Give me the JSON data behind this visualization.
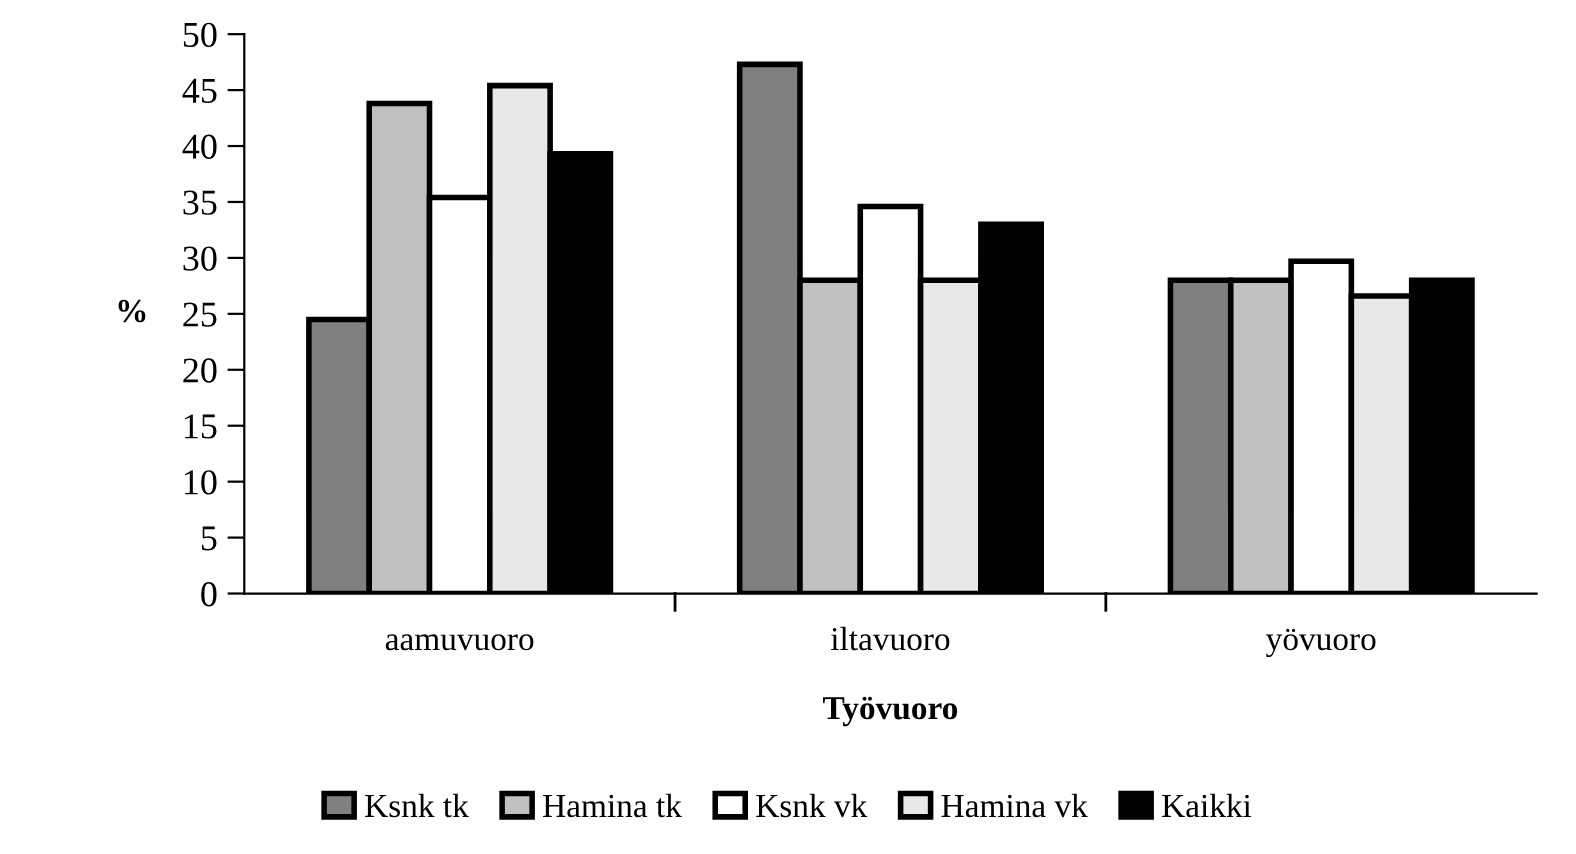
{
  "chart_data": {
    "type": "bar",
    "xlabel": "Työvuoro",
    "ylabel": "%",
    "categories": [
      "aamuvuoro",
      "iltavuoro",
      "yövuoro"
    ],
    "series": [
      {
        "name": "Ksnk tk",
        "color": "#808080",
        "values": [
          24.5,
          47.3,
          28.0
        ]
      },
      {
        "name": "Hamina tk",
        "color": "#c0c0c0",
        "values": [
          43.8,
          28.0,
          28.0
        ]
      },
      {
        "name": "Ksnk vk",
        "color": "#ffffff",
        "values": [
          35.4,
          34.6,
          29.7
        ]
      },
      {
        "name": "Hamina vk",
        "color": "#e8e8e8",
        "values": [
          45.4,
          28.0,
          26.6
        ]
      },
      {
        "name": "Kaikki",
        "color": "#000000",
        "values": [
          39.3,
          33.0,
          28.0
        ]
      }
    ],
    "ylim": [
      0,
      50
    ],
    "yticks": [
      0,
      5,
      10,
      15,
      20,
      25,
      30,
      35,
      40,
      45,
      50
    ],
    "grid": false,
    "legend": "bottom"
  }
}
